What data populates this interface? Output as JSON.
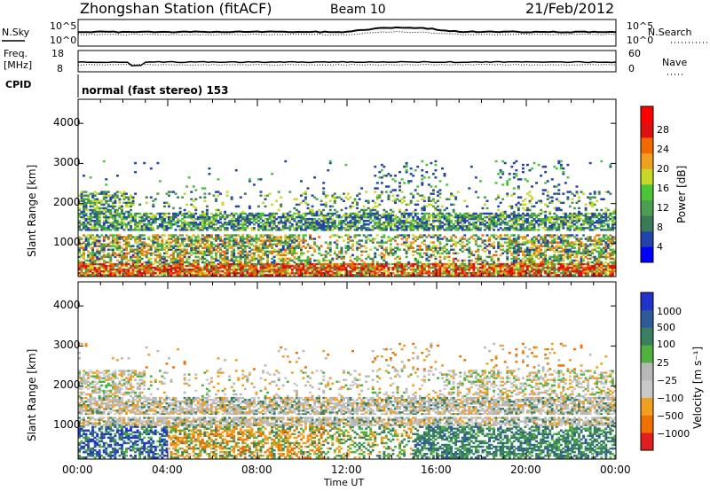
{
  "header": {
    "station": "Zhongshan Station (fitACF)",
    "beam": "Beam 10",
    "date": "21/Feb/2012"
  },
  "top_panels": {
    "nsky": {
      "label": "N.Sky",
      "ticks": [
        "10^5",
        "10^0"
      ]
    },
    "nsearch": {
      "label": "N.Search",
      "ticks": [
        "10^5",
        "10^0"
      ]
    },
    "freq": {
      "label_line1": "Freq.",
      "label_line2": "[MHz]",
      "ticks": [
        "18",
        "8"
      ]
    },
    "nave": {
      "label": "Nave",
      "ticks": [
        "60",
        "0"
      ]
    },
    "cpid": {
      "label": "CPID",
      "value": "normal (fast stereo) 153"
    }
  },
  "panel_power": {
    "ylabel": "Slant Range [km]",
    "y_ticks": [
      "4000",
      "3000",
      "2000",
      "1000"
    ],
    "colorbar_label": "Power [dB]",
    "colorbar_ticks": [
      "28",
      "24",
      "20",
      "16",
      "12",
      "8",
      "4"
    ],
    "colors": [
      "#0000ff",
      "#2244aa",
      "#3a7a56",
      "#4aa050",
      "#4cc43a",
      "#c8d82a",
      "#f0a020",
      "#f06a00",
      "#e01010",
      "#ff0000"
    ]
  },
  "panel_velocity": {
    "ylabel": "Slant Range [km]",
    "y_ticks": [
      "4000",
      "3000",
      "2000",
      "1000"
    ],
    "colorbar_label": "Velocity [m s⁻¹]",
    "colorbar_ticks": [
      "1000",
      "500",
      "100",
      "25",
      "−25",
      "−100",
      "−500",
      "−1000"
    ],
    "colors": [
      "#2233cc",
      "#2f5a9a",
      "#3a8060",
      "#50b040",
      "#b8b8b8",
      "#c8c8c8",
      "#f0a020",
      "#f07000",
      "#e02020"
    ]
  },
  "x_axis": {
    "label": "Time UT",
    "ticks": [
      "00:00",
      "04:00",
      "08:00",
      "12:00",
      "16:00",
      "20:00",
      "00:00"
    ]
  },
  "chart_data": {
    "type": "heatmap",
    "title": "Zhongshan Station (fitACF) Beam 10 21/Feb/2012",
    "x": {
      "label": "Time UT",
      "ticks": [
        "00:00",
        "04:00",
        "08:00",
        "12:00",
        "16:00",
        "20:00",
        "00:00"
      ],
      "range_hours": [
        0,
        24
      ]
    },
    "y": {
      "label": "Slant Range [km]",
      "range_km": [
        180,
        4600
      ],
      "ticks": [
        1000,
        2000,
        3000,
        4000
      ]
    },
    "panels": [
      {
        "name": "Power [dB]",
        "colorbar": [
          4,
          8,
          12,
          16,
          20,
          24,
          28
        ],
        "regions": [
          {
            "t_start": 0,
            "t_end": 24,
            "r_start": 200,
            "r_end": 500,
            "level": "high"
          },
          {
            "t_start": 0,
            "t_end": 10,
            "r_start": 500,
            "r_end": 1200,
            "level": "medium"
          },
          {
            "t_start": 0,
            "t_end": 24,
            "r_start": 1300,
            "r_end": 1700,
            "level": "medium"
          },
          {
            "t_start": 13,
            "t_end": 16,
            "r_start": 1900,
            "r_end": 3000,
            "level": "low"
          },
          {
            "t_start": 20,
            "t_end": 24,
            "r_start": 700,
            "r_end": 1400,
            "level": "high"
          }
        ]
      },
      {
        "name": "Velocity [m s-1]",
        "colorbar": [
          -1000,
          -500,
          -100,
          -25,
          25,
          100,
          500,
          1000
        ],
        "regions": [
          {
            "t_start": 0,
            "t_end": 4,
            "r_start": 300,
            "r_end": 1000,
            "level": "positive"
          },
          {
            "t_start": 0,
            "t_end": 24,
            "r_start": 1200,
            "r_end": 1700,
            "level": "near-zero"
          },
          {
            "t_start": 5,
            "t_end": 11,
            "r_start": 300,
            "r_end": 900,
            "level": "negative"
          },
          {
            "t_start": 15,
            "t_end": 24,
            "r_start": 300,
            "r_end": 1400,
            "level": "weak-positive"
          }
        ]
      }
    ]
  }
}
